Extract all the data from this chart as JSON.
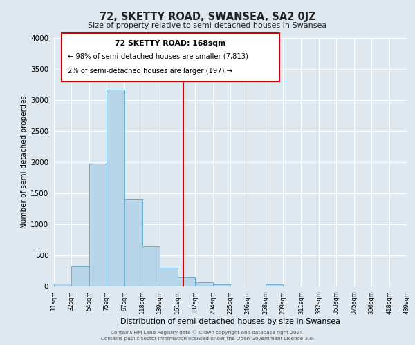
{
  "title": "72, SKETTY ROAD, SWANSEA, SA2 0JZ",
  "subtitle": "Size of property relative to semi-detached houses in Swansea",
  "xlabel": "Distribution of semi-detached houses by size in Swansea",
  "ylabel": "Number of semi-detached properties",
  "bar_color": "#b8d4e8",
  "bar_edge_color": "#6aadd5",
  "background_color": "#dde8f0",
  "plot_bg_color": "#dde8f0",
  "grid_color": "#ffffff",
  "annotation_box_color": "#cc0000",
  "vline_color": "#cc0000",
  "vline_x": 168,
  "property_label": "72 SKETTY ROAD: 168sqm",
  "smaller_label": "← 98% of semi-detached houses are smaller (7,813)",
  "larger_label": "2% of semi-detached houses are larger (197) →",
  "bin_edges": [
    11,
    32,
    54,
    75,
    97,
    118,
    139,
    161,
    182,
    204,
    225,
    246,
    268,
    289,
    311,
    332,
    353,
    375,
    396,
    418,
    439
  ],
  "bar_heights": [
    50,
    320,
    1980,
    3170,
    1400,
    640,
    300,
    140,
    70,
    30,
    0,
    0,
    30,
    0,
    0,
    0,
    0,
    0,
    0,
    0
  ],
  "ylim": [
    0,
    4000
  ],
  "yticks": [
    0,
    500,
    1000,
    1500,
    2000,
    2500,
    3000,
    3500,
    4000
  ],
  "footer_line1": "Contains HM Land Registry data © Crown copyright and database right 2024.",
  "footer_line2": "Contains public sector information licensed under the Open Government Licence 3.0."
}
